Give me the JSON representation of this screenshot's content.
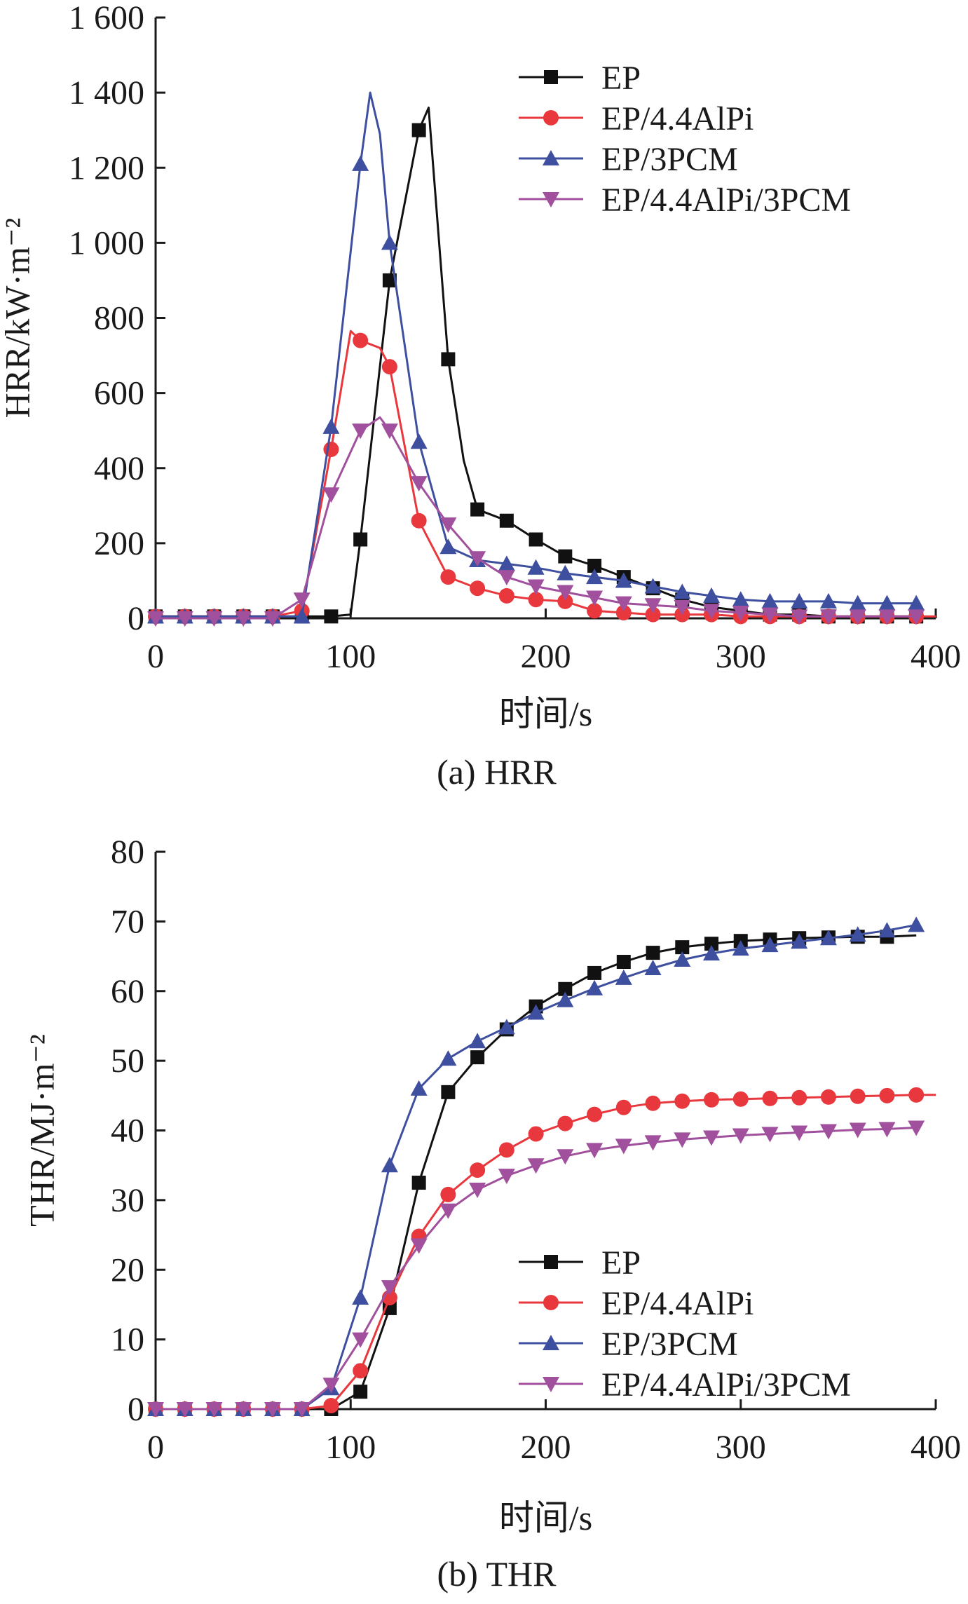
{
  "chart_data": [
    {
      "type": "line",
      "caption": "(a) HRR",
      "xlabel": "时间/s",
      "ylabel": "HRR/kW·m⁻²",
      "xlim": [
        0,
        400
      ],
      "ylim": [
        0,
        1600
      ],
      "xticks": [
        0,
        100,
        200,
        300,
        400
      ],
      "xtick_labels": [
        "0",
        "100",
        "200",
        "300",
        "400"
      ],
      "yticks": [
        0,
        200,
        400,
        600,
        800,
        1000,
        1200,
        1400,
        1600
      ],
      "ytick_labels": [
        "0",
        "200",
        "400",
        "600",
        "800",
        "1 000",
        "1 200",
        "1 400",
        "1 600"
      ],
      "grid": false,
      "legend_position": "top-right",
      "series": [
        {
          "name": "EP",
          "color": "#111111",
          "marker": "square",
          "x": [
            0,
            15,
            30,
            45,
            60,
            75,
            90,
            100,
            105,
            120,
            135,
            140,
            150,
            158,
            165,
            180,
            195,
            210,
            225,
            240,
            255,
            270,
            285,
            300,
            315,
            330,
            345,
            360,
            375,
            390
          ],
          "y": [
            5,
            5,
            5,
            5,
            5,
            5,
            5,
            10,
            210,
            900,
            1300,
            1360,
            690,
            420,
            290,
            260,
            210,
            165,
            140,
            110,
            80,
            50,
            30,
            20,
            10,
            10,
            5,
            5,
            5,
            5
          ],
          "marker_x": [
            0,
            15,
            30,
            45,
            60,
            75,
            90,
            105,
            120,
            135,
            150,
            165,
            180,
            195,
            210,
            225,
            240,
            255,
            270,
            285,
            300,
            315,
            330,
            345,
            360,
            375,
            390
          ],
          "marker_y": [
            5,
            5,
            5,
            5,
            5,
            5,
            5,
            210,
            900,
            1300,
            690,
            290,
            260,
            210,
            165,
            140,
            110,
            80,
            50,
            30,
            20,
            10,
            10,
            5,
            5,
            5,
            5
          ]
        },
        {
          "name": "EP/4.4AlPi",
          "color": "#e8383d",
          "marker": "circle",
          "x": [
            0,
            15,
            30,
            45,
            60,
            75,
            90,
            100,
            105,
            115,
            120,
            128,
            135,
            150,
            165,
            180,
            195,
            210,
            225,
            240,
            255,
            270,
            285,
            300,
            315,
            330,
            345,
            360,
            375,
            390,
            400
          ],
          "y": [
            5,
            5,
            5,
            5,
            5,
            20,
            450,
            765,
            740,
            720,
            670,
            450,
            260,
            110,
            80,
            60,
            50,
            45,
            20,
            15,
            10,
            10,
            10,
            5,
            5,
            5,
            5,
            5,
            5,
            5,
            5
          ],
          "marker_x": [
            0,
            15,
            30,
            45,
            60,
            75,
            90,
            105,
            120,
            135,
            150,
            165,
            180,
            195,
            210,
            225,
            240,
            255,
            270,
            285,
            300,
            315,
            330,
            345,
            360,
            375,
            390
          ],
          "marker_y": [
            5,
            5,
            5,
            5,
            5,
            20,
            450,
            740,
            670,
            260,
            110,
            80,
            60,
            50,
            45,
            20,
            15,
            10,
            10,
            10,
            5,
            5,
            5,
            5,
            5,
            5,
            5
          ]
        },
        {
          "name": "EP/3PCM",
          "color": "#3f4fa0",
          "marker": "triangle-up",
          "x": [
            0,
            15,
            30,
            45,
            60,
            75,
            90,
            105,
            110,
            115,
            120,
            135,
            150,
            165,
            180,
            195,
            210,
            225,
            240,
            255,
            270,
            285,
            300,
            315,
            330,
            345,
            360,
            375,
            390
          ],
          "y": [
            5,
            5,
            5,
            5,
            5,
            5,
            510,
            1210,
            1400,
            1290,
            1000,
            470,
            190,
            155,
            145,
            135,
            120,
            110,
            100,
            85,
            70,
            60,
            50,
            45,
            45,
            45,
            40,
            40,
            40
          ],
          "marker_x": [
            0,
            15,
            30,
            45,
            60,
            75,
            90,
            105,
            120,
            135,
            150,
            165,
            180,
            195,
            210,
            225,
            240,
            255,
            270,
            285,
            300,
            315,
            330,
            345,
            360,
            375,
            390
          ],
          "marker_y": [
            5,
            5,
            5,
            5,
            5,
            5,
            510,
            1210,
            1000,
            470,
            190,
            155,
            145,
            135,
            120,
            110,
            100,
            85,
            70,
            60,
            50,
            45,
            45,
            45,
            40,
            40,
            40
          ]
        },
        {
          "name": "EP/4.4AlPi/3PCM",
          "color": "#a0509c",
          "marker": "triangle-down",
          "x": [
            0,
            15,
            30,
            45,
            60,
            75,
            90,
            105,
            115,
            120,
            135,
            150,
            165,
            180,
            195,
            210,
            225,
            240,
            255,
            270,
            285,
            300,
            315,
            330,
            345,
            360,
            375,
            390
          ],
          "y": [
            0,
            0,
            0,
            0,
            0,
            50,
            330,
            500,
            535,
            500,
            360,
            250,
            160,
            110,
            85,
            70,
            55,
            40,
            35,
            30,
            20,
            15,
            10,
            5,
            5,
            5,
            5,
            5
          ],
          "marker_x": [
            0,
            15,
            30,
            45,
            60,
            75,
            90,
            105,
            120,
            135,
            150,
            165,
            180,
            195,
            210,
            225,
            240,
            255,
            270,
            285,
            300,
            315,
            330,
            345,
            360,
            375,
            390
          ],
          "marker_y": [
            0,
            0,
            0,
            0,
            0,
            50,
            330,
            500,
            500,
            360,
            250,
            160,
            110,
            85,
            70,
            55,
            40,
            35,
            30,
            20,
            15,
            10,
            5,
            5,
            5,
            5,
            5
          ]
        }
      ]
    },
    {
      "type": "line",
      "caption": "(b) THR",
      "xlabel": "时间/s",
      "ylabel": "THR/MJ·m⁻²",
      "xlim": [
        0,
        400
      ],
      "ylim": [
        0,
        80
      ],
      "xticks": [
        0,
        100,
        200,
        300,
        400
      ],
      "xtick_labels": [
        "0",
        "100",
        "200",
        "300",
        "400"
      ],
      "yticks": [
        0,
        10,
        20,
        30,
        40,
        50,
        60,
        70,
        80
      ],
      "ytick_labels": [
        "0",
        "10",
        "20",
        "30",
        "40",
        "50",
        "60",
        "70",
        "80"
      ],
      "grid": false,
      "legend_position": "bottom-right",
      "series": [
        {
          "name": "EP",
          "color": "#111111",
          "marker": "square",
          "x": [
            0,
            15,
            30,
            45,
            60,
            75,
            90,
            105,
            120,
            135,
            150,
            165,
            180,
            195,
            210,
            225,
            240,
            255,
            270,
            285,
            300,
            315,
            330,
            345,
            360,
            375,
            390
          ],
          "y": [
            0,
            0,
            0,
            0,
            0,
            0,
            0,
            2.5,
            14.5,
            32.5,
            45.5,
            50.5,
            54.5,
            57.8,
            60.3,
            62.6,
            64.2,
            65.5,
            66.3,
            66.8,
            67.2,
            67.4,
            67.6,
            67.7,
            67.8,
            67.8,
            68.0
          ],
          "marker_x": [
            0,
            15,
            30,
            45,
            60,
            75,
            90,
            105,
            120,
            135,
            150,
            165,
            180,
            195,
            210,
            225,
            240,
            255,
            270,
            285,
            300,
            315,
            330,
            345,
            360,
            375
          ],
          "marker_y": [
            0,
            0,
            0,
            0,
            0,
            0,
            0,
            2.5,
            14.5,
            32.5,
            45.5,
            50.5,
            54.5,
            57.8,
            60.3,
            62.6,
            64.2,
            65.5,
            66.3,
            66.8,
            67.2,
            67.4,
            67.6,
            67.7,
            67.8,
            67.8
          ]
        },
        {
          "name": "EP/4.4AlPi",
          "color": "#e8383d",
          "marker": "circle",
          "x": [
            0,
            15,
            30,
            45,
            60,
            75,
            90,
            105,
            120,
            135,
            150,
            165,
            180,
            195,
            210,
            225,
            240,
            255,
            270,
            285,
            300,
            315,
            330,
            345,
            360,
            375,
            390,
            400
          ],
          "y": [
            0,
            0,
            0,
            0,
            0,
            0,
            0.5,
            5.5,
            16.0,
            24.8,
            30.8,
            34.3,
            37.2,
            39.5,
            41.0,
            42.3,
            43.3,
            43.9,
            44.2,
            44.4,
            44.5,
            44.6,
            44.7,
            44.8,
            44.9,
            45.0,
            45.1,
            45.1
          ],
          "marker_x": [
            0,
            15,
            30,
            45,
            60,
            75,
            90,
            105,
            120,
            135,
            150,
            165,
            180,
            195,
            210,
            225,
            240,
            255,
            270,
            285,
            300,
            315,
            330,
            345,
            360,
            375,
            390
          ],
          "marker_y": [
            0,
            0,
            0,
            0,
            0,
            0,
            0.5,
            5.5,
            16.0,
            24.8,
            30.8,
            34.3,
            37.2,
            39.5,
            41.0,
            42.3,
            43.3,
            43.9,
            44.2,
            44.4,
            44.5,
            44.6,
            44.7,
            44.8,
            44.9,
            45.0,
            45.1
          ]
        },
        {
          "name": "EP/3PCM",
          "color": "#3f4fa0",
          "marker": "triangle-up",
          "x": [
            0,
            15,
            30,
            45,
            60,
            75,
            90,
            105,
            120,
            135,
            150,
            165,
            180,
            195,
            210,
            225,
            240,
            255,
            270,
            285,
            300,
            315,
            330,
            345,
            360,
            375,
            390
          ],
          "y": [
            0,
            0,
            0,
            0,
            0,
            0,
            3.0,
            16.0,
            35.0,
            46.0,
            50.3,
            52.8,
            54.8,
            56.9,
            58.7,
            60.4,
            61.9,
            63.3,
            64.5,
            65.4,
            66.1,
            66.6,
            67.1,
            67.6,
            68.1,
            68.7,
            69.5
          ],
          "marker_x": [
            0,
            15,
            30,
            45,
            60,
            75,
            90,
            105,
            120,
            135,
            150,
            165,
            180,
            195,
            210,
            225,
            240,
            255,
            270,
            285,
            300,
            315,
            330,
            345,
            360,
            375,
            390
          ],
          "marker_y": [
            0,
            0,
            0,
            0,
            0,
            0,
            3.0,
            16.0,
            35.0,
            46.0,
            50.3,
            52.8,
            54.8,
            56.9,
            58.7,
            60.4,
            61.9,
            63.3,
            64.5,
            65.4,
            66.1,
            66.6,
            67.1,
            67.6,
            68.1,
            68.7,
            69.5
          ]
        },
        {
          "name": "EP/4.4AlPi/3PCM",
          "color": "#a0509c",
          "marker": "triangle-down",
          "x": [
            0,
            15,
            30,
            45,
            60,
            75,
            90,
            105,
            120,
            135,
            150,
            165,
            180,
            195,
            210,
            225,
            240,
            255,
            270,
            285,
            300,
            315,
            330,
            345,
            360,
            375,
            390
          ],
          "y": [
            0,
            0,
            0,
            0,
            0,
            0,
            3.5,
            10.0,
            17.5,
            23.5,
            28.5,
            31.5,
            33.5,
            35.0,
            36.3,
            37.2,
            37.8,
            38.3,
            38.7,
            39.0,
            39.3,
            39.5,
            39.7,
            39.9,
            40.1,
            40.2,
            40.4
          ],
          "marker_x": [
            0,
            15,
            30,
            45,
            60,
            75,
            90,
            105,
            120,
            135,
            150,
            165,
            180,
            195,
            210,
            225,
            240,
            255,
            270,
            285,
            300,
            315,
            330,
            345,
            360,
            375,
            390
          ],
          "marker_y": [
            0,
            0,
            0,
            0,
            0,
            0,
            3.5,
            10.0,
            17.5,
            23.5,
            28.5,
            31.5,
            33.5,
            35.0,
            36.3,
            37.2,
            37.8,
            38.3,
            38.7,
            39.0,
            39.3,
            39.5,
            39.7,
            39.9,
            40.1,
            40.2,
            40.4
          ]
        }
      ]
    }
  ]
}
